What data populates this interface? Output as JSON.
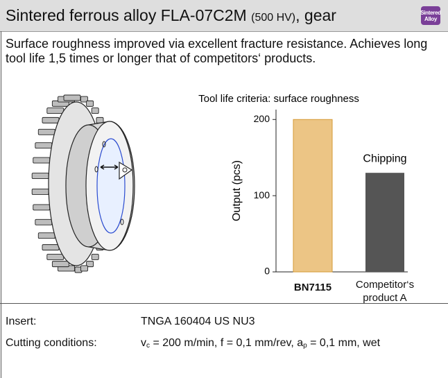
{
  "header": {
    "title_main": "Sintered ferrous alloy FLA-07C2M",
    "title_note": "(500 HV)",
    "title_suffix": ", gear",
    "badge": [
      "Sintered",
      "Alloy"
    ]
  },
  "description": "Surface roughness improved via excellent fracture resistance. Achieves long tool life 1,5 times or longer that of competitors‘ products.",
  "chart_data": {
    "type": "bar",
    "title": "Tool life criteria: surface roughness",
    "y_label": "Output (pcs)",
    "categories": [
      "BN7115",
      "Competitor‘s product A"
    ],
    "values": [
      200,
      130
    ],
    "colors": [
      "#ecc585",
      "#555555"
    ],
    "annotation": "Chipping",
    "ylim": [
      0,
      213
    ],
    "yticks": [
      0,
      100,
      200
    ]
  },
  "details": [
    {
      "label": "Insert:",
      "value": [
        {
          "text": "TNGA 160404 US NU3"
        }
      ]
    },
    {
      "label": "Cutting conditions:",
      "value": [
        {
          "text": "v",
          "sub": "c"
        },
        {
          "text": " = 200 m/min, f = 0,1 mm/rev, a",
          "sub": "p"
        },
        {
          "text": " = 0,1 mm, wet"
        }
      ]
    }
  ]
}
